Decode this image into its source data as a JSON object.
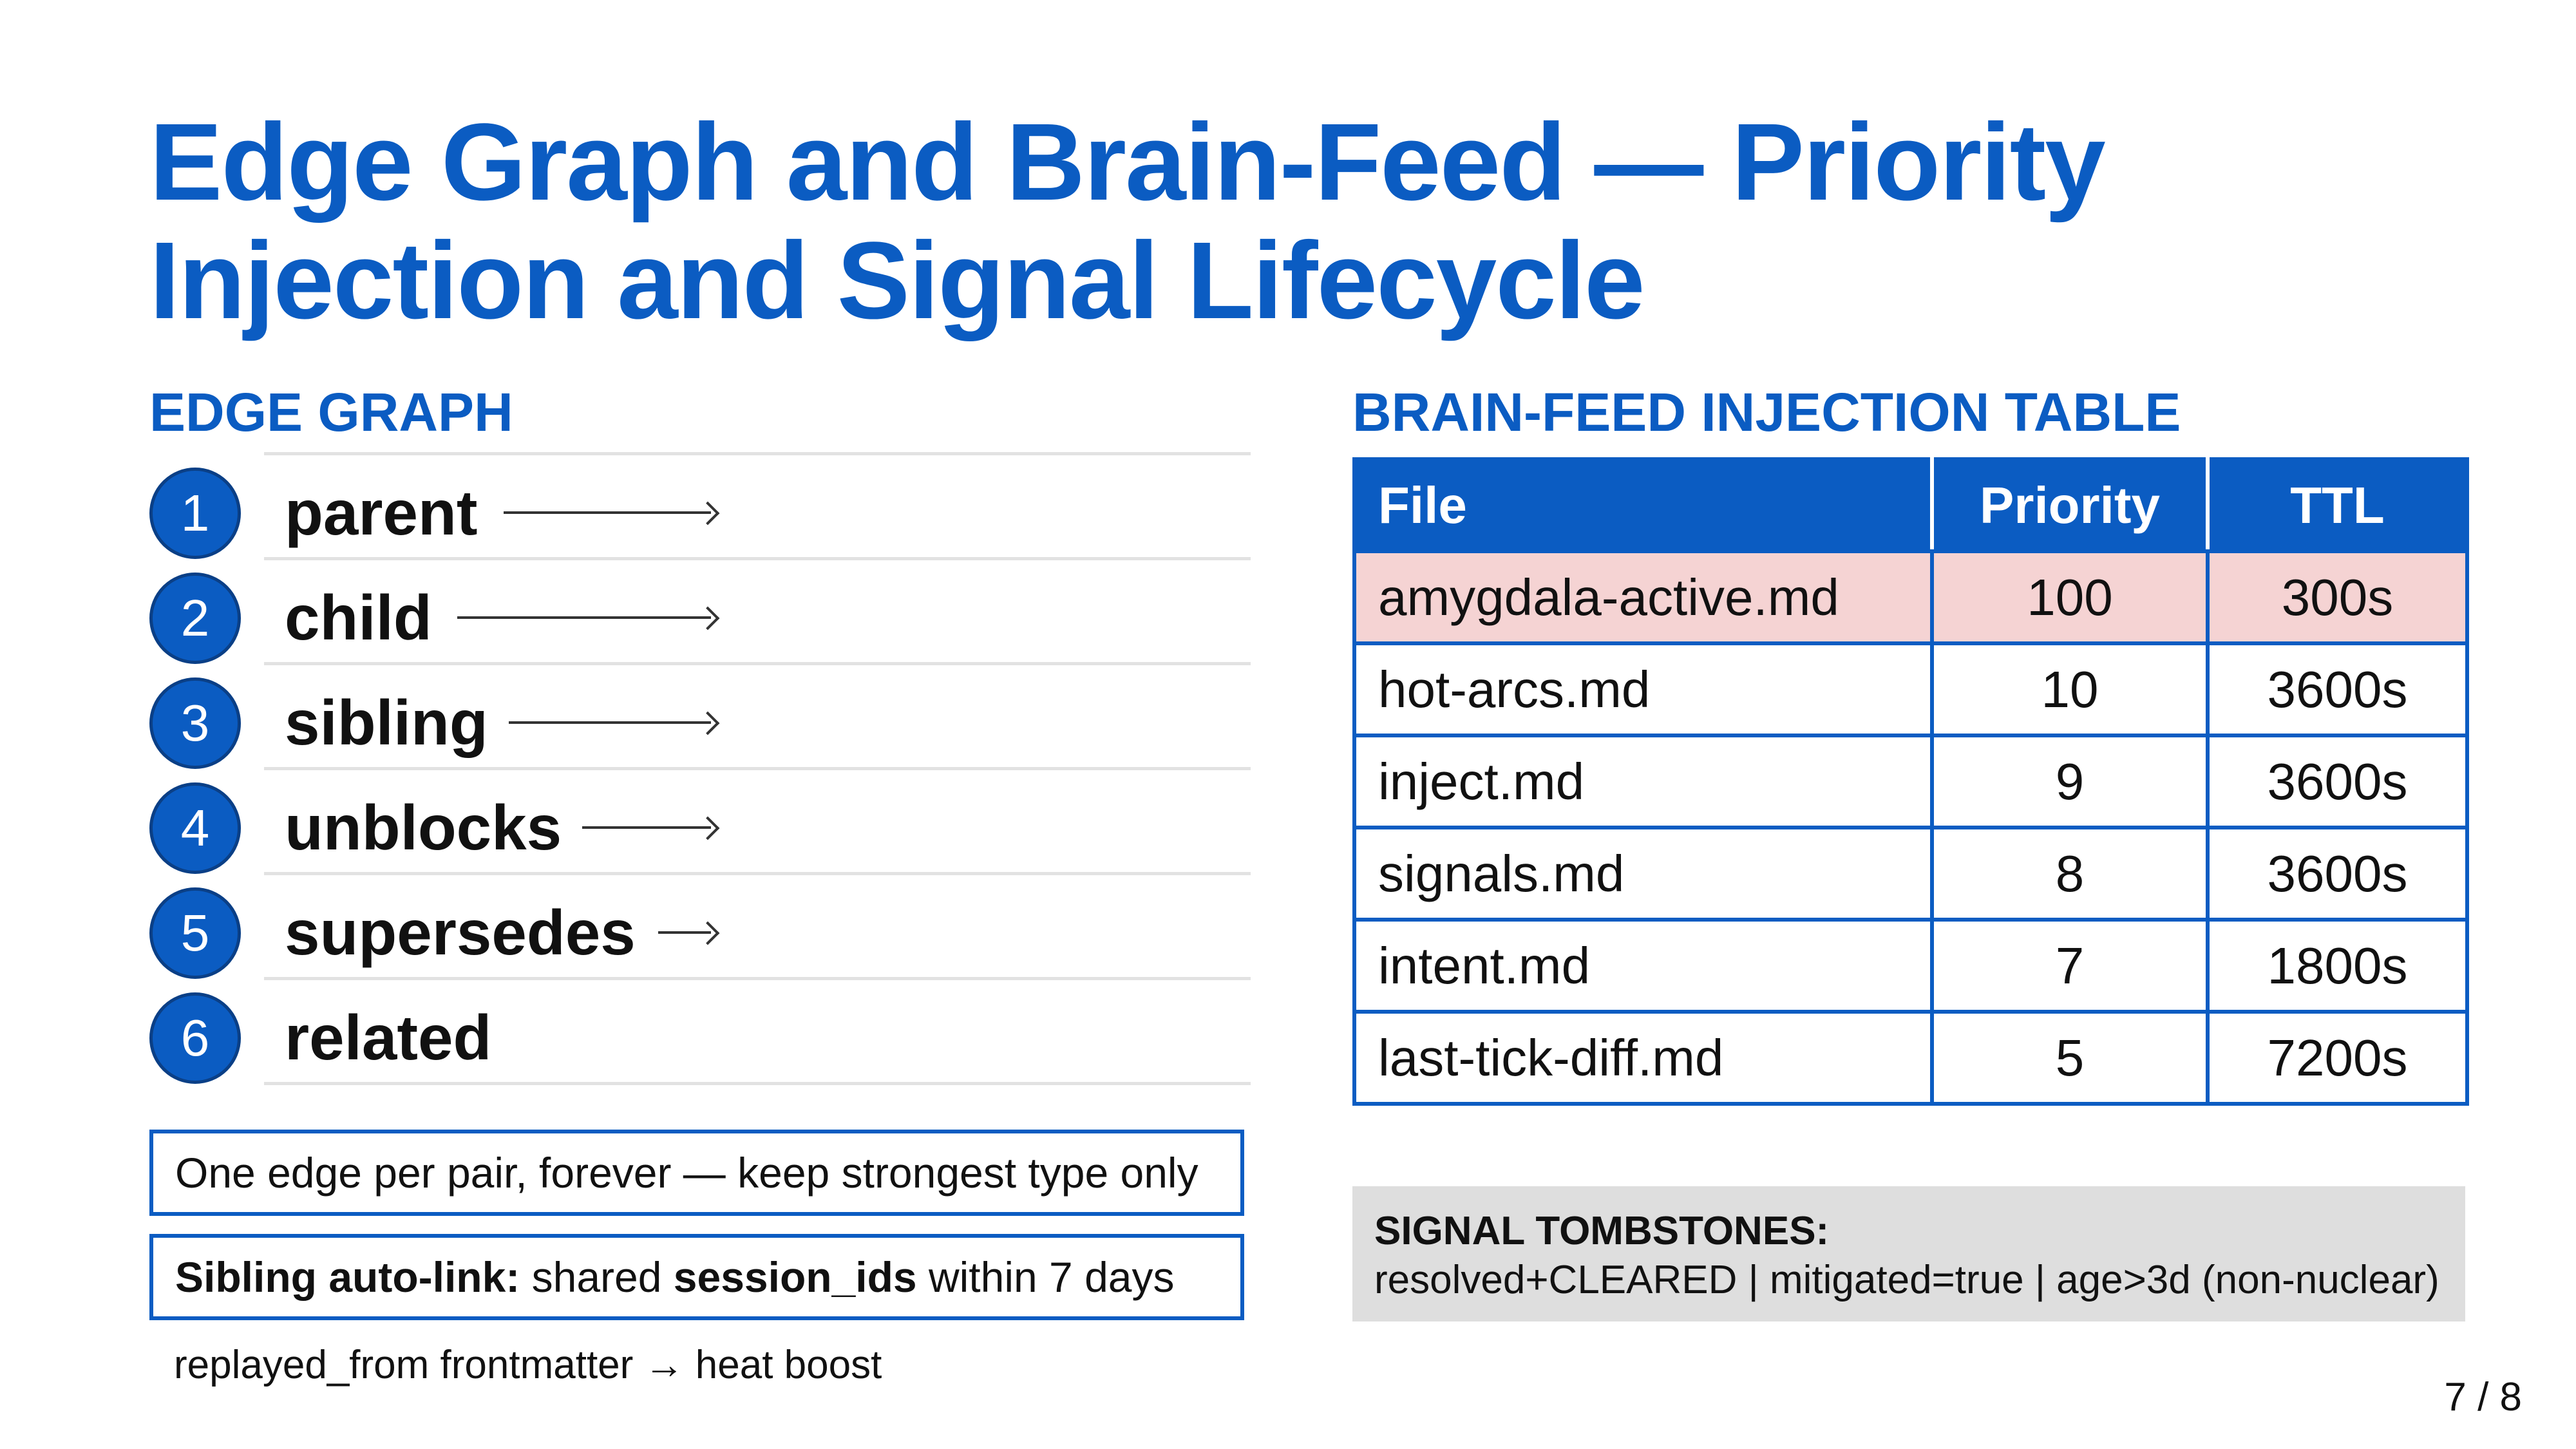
{
  "title": {
    "line1": "Edge Graph and Brain-Feed — Priority",
    "line2": "Injection and Signal Lifecycle"
  },
  "edge_graph": {
    "heading": "EDGE GRAPH",
    "items": [
      {
        "num": "1",
        "label": "parent"
      },
      {
        "num": "2",
        "label": "child"
      },
      {
        "num": "3",
        "label": "sibling"
      },
      {
        "num": "4",
        "label": "unblocks"
      },
      {
        "num": "5",
        "label": "supersedes"
      },
      {
        "num": "6",
        "label": "related"
      }
    ],
    "notes": {
      "note1": "One edge per pair, forever — keep strongest type only",
      "note2_prefix": "Sibling auto-link:",
      "note2_mid": " shared ",
      "note2_bold": "session_ids",
      "note2_suffix": " within 7 days"
    },
    "footnote": "replayed_from frontmatter → heat boost"
  },
  "brain_feed": {
    "heading": "BRAIN-FEED INJECTION TABLE",
    "columns": [
      "File",
      "Priority",
      "TTL"
    ],
    "rows": [
      {
        "file": "amygdala-active.md",
        "priority": "100",
        "ttl": "300s"
      },
      {
        "file": "hot-arcs.md",
        "priority": "10",
        "ttl": "3600s"
      },
      {
        "file": "inject.md",
        "priority": "9",
        "ttl": "3600s"
      },
      {
        "file": "signals.md",
        "priority": "8",
        "ttl": "3600s"
      },
      {
        "file": "intent.md",
        "priority": "7",
        "ttl": "1800s"
      },
      {
        "file": "last-tick-diff.md",
        "priority": "5",
        "ttl": "7200s"
      }
    ],
    "highlight_color": "#f5d3d3"
  },
  "tombstones": {
    "heading": "SIGNAL TOMBSTONES:",
    "body": "resolved+CLEARED | mitigated=true | age>3d (non-nuclear)"
  },
  "page_number": "7 / 8",
  "colors": {
    "accent": "#0b5cc2",
    "tombstone_bg": "#dedede"
  }
}
